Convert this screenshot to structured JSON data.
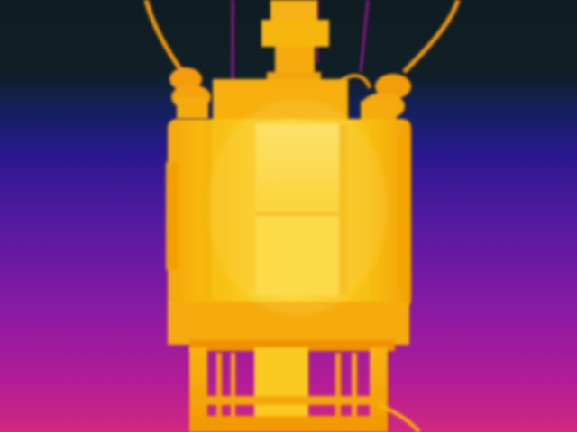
{
  "image": {
    "kind": "thermal-infrared-photo",
    "subject": "pole-mounted-transformer",
    "palette": {
      "cold_dark": "#0f1d22",
      "cold_indigo": "#17176a",
      "mid_violet": "#5619a1",
      "warm_magenta": "#a5199d",
      "hot_pink": "#d2287f",
      "warm_orange": "#f5a000",
      "hot_yellow": "#fbcf11",
      "hottest": "#fce060"
    }
  }
}
